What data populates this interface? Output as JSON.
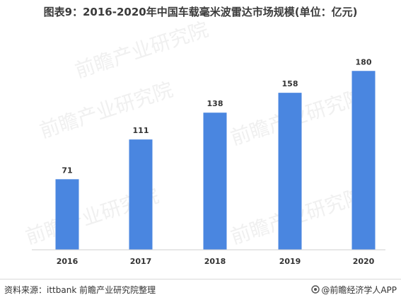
{
  "title": "图表9：2016-2020年中国车载毫米波雷达市场规模(单位：亿元)",
  "footer": {
    "source": "资料来源：ittbank 前瞻产业研究院整理",
    "brand": "@前瞻经济学人APP"
  },
  "watermark": "前瞻产业研究院",
  "colors": {
    "bar": "#4a86e0",
    "axis": "#cfcfcf",
    "label": "#333333"
  },
  "chart_data": {
    "type": "bar",
    "categories": [
      "2016",
      "2017",
      "2018",
      "2019",
      "2020"
    ],
    "values": [
      71,
      111,
      138,
      158,
      180
    ],
    "title": "图表9：2016-2020年中国车载毫米波雷达市场规模(单位：亿元)",
    "xlabel": "",
    "ylabel": "",
    "ylim": [
      0,
      193
    ],
    "grid": false,
    "legend": "none",
    "data_labels": true
  }
}
